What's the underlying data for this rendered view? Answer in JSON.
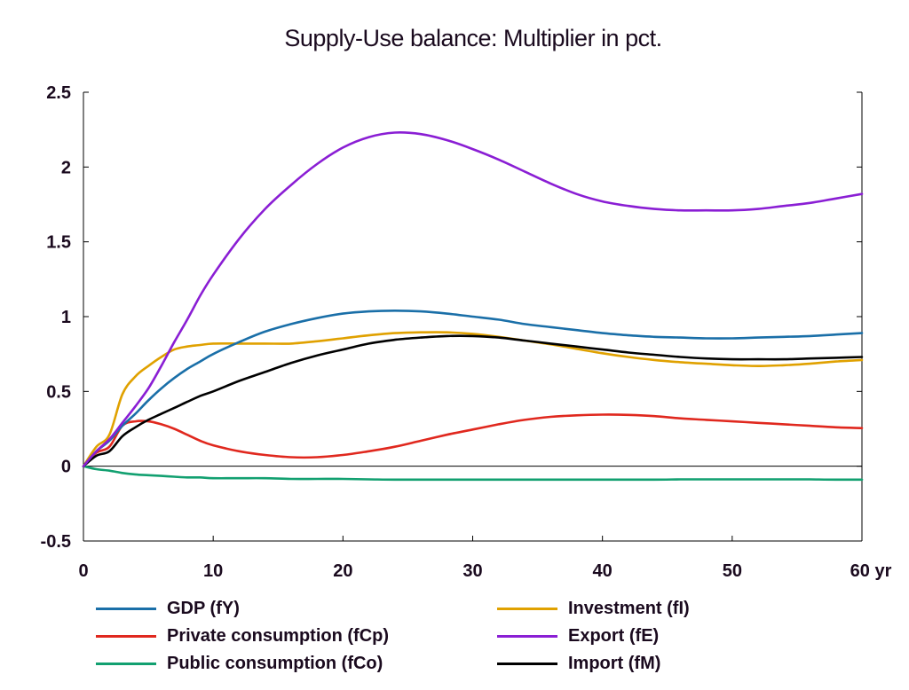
{
  "chart_data": {
    "type": "line",
    "title": "Supply-Use balance: Multiplier in pct.",
    "xlabel": "",
    "ylabel": "",
    "x_unit_label": "yr",
    "xlim": [
      0,
      60
    ],
    "ylim": [
      -0.5,
      2.5
    ],
    "xticks": [
      0,
      10,
      20,
      30,
      40,
      50,
      60
    ],
    "xtick_labels": [
      "0",
      "10",
      "20",
      "30",
      "40",
      "50",
      "60 yr"
    ],
    "yticks": [
      -0.5,
      0,
      0.5,
      1,
      1.5,
      2,
      2.5
    ],
    "ytick_labels": [
      "-0.5",
      "0",
      "0.5",
      "1",
      "1.5",
      "2",
      "2.5"
    ],
    "grid": false,
    "zero_line": true,
    "legend_position": "bottom",
    "x": [
      0,
      1,
      2,
      3,
      4,
      5,
      6,
      7,
      8,
      9,
      10,
      12,
      14,
      16,
      18,
      20,
      22,
      24,
      26,
      28,
      30,
      32,
      34,
      36,
      38,
      40,
      42,
      44,
      46,
      48,
      50,
      52,
      54,
      56,
      58,
      60
    ],
    "series": [
      {
        "name": "GDP (fY)",
        "color": "#1a6fa8",
        "values": [
          0,
          0.1,
          0.17,
          0.27,
          0.35,
          0.44,
          0.52,
          0.59,
          0.65,
          0.7,
          0.75,
          0.83,
          0.9,
          0.95,
          0.99,
          1.02,
          1.035,
          1.04,
          1.035,
          1.02,
          1.0,
          0.98,
          0.95,
          0.93,
          0.91,
          0.89,
          0.875,
          0.865,
          0.86,
          0.855,
          0.855,
          0.86,
          0.865,
          0.87,
          0.88,
          0.89
        ]
      },
      {
        "name": "Investment (fI)",
        "color": "#e0a100",
        "values": [
          0,
          0.13,
          0.21,
          0.48,
          0.6,
          0.67,
          0.73,
          0.78,
          0.8,
          0.81,
          0.82,
          0.82,
          0.82,
          0.82,
          0.835,
          0.855,
          0.875,
          0.89,
          0.895,
          0.895,
          0.885,
          0.865,
          0.84,
          0.815,
          0.785,
          0.755,
          0.73,
          0.71,
          0.695,
          0.685,
          0.675,
          0.67,
          0.675,
          0.685,
          0.7,
          0.71
        ]
      },
      {
        "name": "Private consumption (fCp)",
        "color": "#e0281e",
        "values": [
          0,
          0.09,
          0.13,
          0.27,
          0.3,
          0.3,
          0.28,
          0.25,
          0.21,
          0.17,
          0.14,
          0.1,
          0.075,
          0.06,
          0.06,
          0.075,
          0.1,
          0.13,
          0.17,
          0.21,
          0.245,
          0.28,
          0.31,
          0.33,
          0.34,
          0.345,
          0.343,
          0.335,
          0.32,
          0.31,
          0.3,
          0.29,
          0.28,
          0.27,
          0.26,
          0.255
        ]
      },
      {
        "name": "Export (fE)",
        "color": "#8a1ed4",
        "values": [
          0,
          0.1,
          0.18,
          0.29,
          0.4,
          0.52,
          0.67,
          0.83,
          0.98,
          1.14,
          1.28,
          1.52,
          1.72,
          1.88,
          2.02,
          2.13,
          2.2,
          2.23,
          2.22,
          2.18,
          2.12,
          2.05,
          1.97,
          1.89,
          1.82,
          1.77,
          1.74,
          1.72,
          1.71,
          1.71,
          1.71,
          1.72,
          1.74,
          1.76,
          1.79,
          1.82
        ]
      },
      {
        "name": "Public consumption (fCo)",
        "color": "#12a070",
        "values": [
          0,
          -0.02,
          -0.03,
          -0.045,
          -0.055,
          -0.06,
          -0.065,
          -0.07,
          -0.075,
          -0.075,
          -0.08,
          -0.08,
          -0.08,
          -0.085,
          -0.085,
          -0.085,
          -0.088,
          -0.09,
          -0.09,
          -0.09,
          -0.09,
          -0.09,
          -0.09,
          -0.09,
          -0.09,
          -0.09,
          -0.09,
          -0.09,
          -0.088,
          -0.088,
          -0.088,
          -0.088,
          -0.088,
          -0.088,
          -0.09,
          -0.09
        ]
      },
      {
        "name": "Import (fM)",
        "color": "#000000",
        "values": [
          0,
          0.07,
          0.1,
          0.2,
          0.26,
          0.31,
          0.35,
          0.39,
          0.43,
          0.47,
          0.5,
          0.57,
          0.63,
          0.69,
          0.74,
          0.78,
          0.82,
          0.845,
          0.86,
          0.87,
          0.87,
          0.86,
          0.84,
          0.82,
          0.8,
          0.78,
          0.76,
          0.745,
          0.73,
          0.72,
          0.715,
          0.715,
          0.715,
          0.72,
          0.725,
          0.73
        ]
      }
    ]
  },
  "legend": {
    "left": [
      {
        "label": "GDP (fY)",
        "color": "#1a6fa8"
      },
      {
        "label": "Private consumption (fCp)",
        "color": "#e0281e"
      },
      {
        "label": "Public consumption (fCo)",
        "color": "#12a070"
      }
    ],
    "right": [
      {
        "label": "Investment (fI)",
        "color": "#e0a100"
      },
      {
        "label": "Export (fE)",
        "color": "#8a1ed4"
      },
      {
        "label": "Import (fM)",
        "color": "#000000"
      }
    ]
  }
}
